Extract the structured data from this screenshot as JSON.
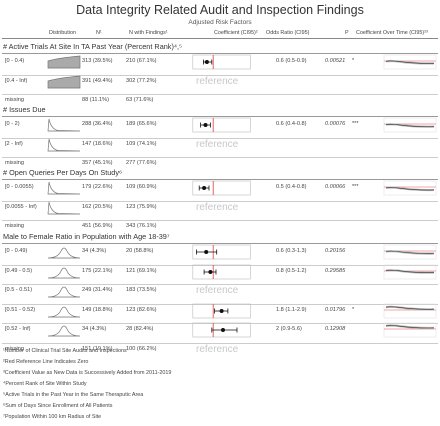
{
  "title": "Data Integrity Related Audit and Inspection Findings",
  "subtitle": "Adjusted Risk Factors",
  "columns": {
    "distribution": "Distribution",
    "n": "N¹",
    "n_findings": "N with Findings¹",
    "coef": "Coefficient (CI95)²",
    "odds": "Odds Ratio (CI95)",
    "p": "P",
    "coef_time": "Coefficient Over Time (CI95)²³"
  },
  "sections": [
    {
      "title": "# Active Trials At Site In TA Past Year (Percent Rank)⁴,⁵",
      "rows": [
        {
          "label": "[0 - 0.4)",
          "n": "313 (39.5%)",
          "nf": "210 (67.1%)",
          "or": "0.6 (0.5-0.9)",
          "p": "0.00521",
          "sig": "*",
          "reference": "",
          "point": -0.45,
          "lo": -0.7,
          "hi": -0.1,
          "dist": "area"
        },
        {
          "label": "[0.4 - Inf)",
          "n": "391 (49.4%)",
          "nf": "302 (77.2%)",
          "or": "",
          "p": "",
          "sig": "",
          "reference": "reference",
          "point": null,
          "lo": null,
          "hi": null,
          "dist": "area"
        },
        {
          "label": "missing",
          "n": "88 (11.1%)",
          "nf": "63 (71.6%)",
          "or": "",
          "p": "",
          "sig": "",
          "reference": "",
          "point": null,
          "lo": null,
          "hi": null,
          "dist": "none"
        }
      ]
    },
    {
      "title": "# Issues Due",
      "rows": [
        {
          "label": "[0 - 2)",
          "n": "288 (36.4%)",
          "nf": "189 (65.6%)",
          "or": "0.6 (0.4-0.8)",
          "p": "0.00076",
          "sig": "***",
          "reference": "",
          "point": -0.55,
          "lo": -0.9,
          "hi": -0.2,
          "dist": "decay"
        },
        {
          "label": "[2 - Inf)",
          "n": "147 (18.6%)",
          "nf": "109 (74.1%)",
          "or": "",
          "p": "",
          "sig": "",
          "reference": "reference",
          "point": null,
          "lo": null,
          "hi": null,
          "dist": "decay"
        },
        {
          "label": "missing",
          "n": "357 (45.1%)",
          "nf": "277 (77.6%)",
          "or": "",
          "p": "",
          "sig": "",
          "reference": "",
          "point": null,
          "lo": null,
          "hi": null,
          "dist": "none"
        }
      ]
    },
    {
      "title": "# Open Queries Per Days On Study⁶",
      "rows": [
        {
          "label": "[0 - 0.0055)",
          "n": "179 (22.6%)",
          "nf": "109 (60.9%)",
          "or": "0.5 (0.4-0.8)",
          "p": "0.00066",
          "sig": "***",
          "reference": "",
          "point": -0.65,
          "lo": -1.0,
          "hi": -0.3,
          "dist": "decay"
        },
        {
          "label": "[0.0055 - Inf)",
          "n": "162 (20.5%)",
          "nf": "123 (75.9%)",
          "or": "",
          "p": "",
          "sig": "",
          "reference": "reference",
          "point": null,
          "lo": null,
          "hi": null,
          "dist": "decay"
        },
        {
          "label": "missing",
          "n": "451 (56.9%)",
          "nf": "343 (76.1%)",
          "or": "",
          "p": "",
          "sig": "",
          "reference": "",
          "point": null,
          "lo": null,
          "hi": null,
          "dist": "none"
        }
      ]
    },
    {
      "title": "Male to Female Ratio in Population with Age 18-39⁷",
      "rows": [
        {
          "label": "[0 - 0.49)",
          "n": "34 (4.3%)",
          "nf": "20 (58.8%)",
          "or": "0.6 (0.3-1.3)",
          "p": "0.20156",
          "sig": "",
          "reference": "",
          "point": -0.5,
          "lo": -1.2,
          "hi": 0.25,
          "dist": "bell"
        },
        {
          "label": "[0.49 - 0.5)",
          "n": "175 (22.1%)",
          "nf": "121 (69.1%)",
          "or": "0.8 (0.5-1.2)",
          "p": "0.29585",
          "sig": "",
          "reference": "",
          "point": -0.2,
          "lo": -0.65,
          "hi": 0.2,
          "dist": "bell"
        },
        {
          "label": "[0.5 - 0.51)",
          "n": "249 (31.4%)",
          "nf": "183 (73.5%)",
          "or": "",
          "p": "",
          "sig": "",
          "reference": "reference",
          "point": null,
          "lo": null,
          "hi": null,
          "dist": "bell"
        },
        {
          "label": "[0.51 - 0.52)",
          "n": "149 (18.8%)",
          "nf": "123 (82.6%)",
          "or": "1.8 (1.1-2.9)",
          "p": "0.01796",
          "sig": "*",
          "reference": "",
          "point": 0.6,
          "lo": 0.1,
          "hi": 1.05,
          "dist": "bell"
        },
        {
          "label": "[0.52 - Inf)",
          "n": "34 (4.3%)",
          "nf": "28 (82.4%)",
          "or": "2 (0.9-5.6)",
          "p": "0.12908",
          "sig": "",
          "reference": "",
          "point": 0.7,
          "lo": -0.1,
          "hi": 1.7,
          "dist": "bell"
        },
        {
          "label": "missing",
          "n": "151 (19.1%)",
          "nf": "100 (66.2%)",
          "or": "",
          "p": "",
          "sig": "",
          "reference": "reference",
          "point": null,
          "lo": null,
          "hi": null,
          "dist": "none"
        }
      ]
    }
  ],
  "footnotes": [
    "¹Number of Clinical Trial Site Audits and Inspections",
    "²Red Reference Line Indicates Zero",
    "³Coefficient Value as New Data is Successively Added from 2011-2019",
    "⁴Percent Rank of Site Within Study",
    "⁵Active Trials in the Past Year in the Same Theraputic Area",
    "⁶Sum of Days Since Enrollment of All Patients",
    "⁷Population Within 100 km Radius of Site"
  ],
  "colors": {
    "zero_line": "#e05050",
    "point": "#111111",
    "dist_fill": "#999999",
    "reference_text": "#c8c8c8"
  }
}
